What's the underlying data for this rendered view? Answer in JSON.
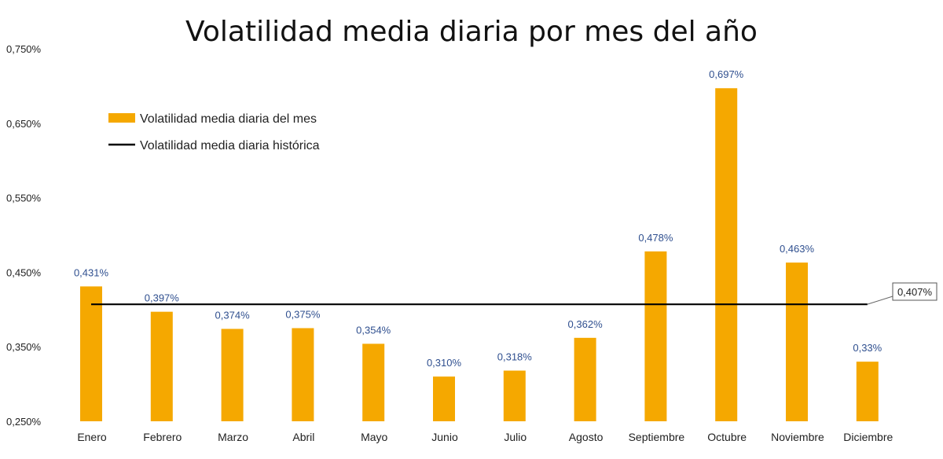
{
  "chart_data": {
    "type": "bar",
    "title": "Volatilidad media diaria por mes del año",
    "categories": [
      "Enero",
      "Febrero",
      "Marzo",
      "Abril",
      "Mayo",
      "Junio",
      "Julio",
      "Agosto",
      "Septiembre",
      "Octubre",
      "Noviembre",
      "Diciembre"
    ],
    "series": [
      {
        "name": "Volatilidad media diaria del mes",
        "values": [
          0.431,
          0.397,
          0.374,
          0.375,
          0.354,
          0.31,
          0.318,
          0.362,
          0.478,
          0.697,
          0.463,
          0.33
        ],
        "labels": [
          "0,431%",
          "0,397%",
          "0,374%",
          "0,375%",
          "0,354%",
          "0,310%",
          "0,318%",
          "0,362%",
          "0,478%",
          "0,697%",
          "0,463%",
          "0,33%"
        ],
        "color": "#f5a800"
      }
    ],
    "reference_line": {
      "name": "Volatilidad media diaria histórica",
      "value": 0.407,
      "label": "0,407%",
      "color": "#000000"
    },
    "yticks": [
      0.25,
      0.35,
      0.45,
      0.55,
      0.65,
      0.75
    ],
    "ytick_labels": [
      "0,250%",
      "0,350%",
      "0,450%",
      "0,550%",
      "0,650%",
      "0,750%"
    ],
    "ylim": [
      0.25,
      0.75
    ],
    "grid": false,
    "legend_position": "top-left"
  }
}
